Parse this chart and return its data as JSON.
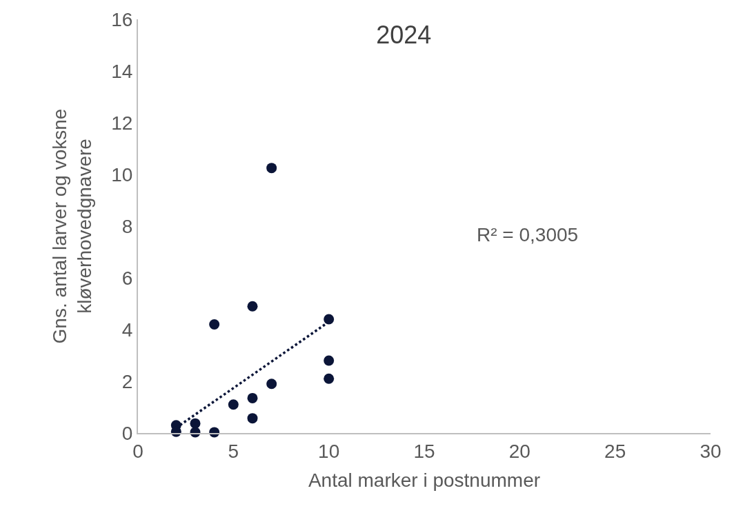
{
  "chart_data": {
    "type": "scatter",
    "title": "2024",
    "xlabel": "Antal marker i postnummer",
    "ylabel": "Gns. antal larver og voksne\nkløverhovedgnavere",
    "annotations": [
      "R² = 0,3005"
    ],
    "xlim": [
      0,
      30
    ],
    "xticks": [
      0,
      5,
      10,
      15,
      20,
      25,
      30
    ],
    "ylim": [
      0,
      16
    ],
    "yticks": [
      0,
      2,
      4,
      6,
      8,
      10,
      12,
      14,
      16
    ],
    "grid": false,
    "marker": "circle",
    "series": [
      {
        "color": "#0b1538",
        "x": [
          2,
          2,
          3,
          3,
          4,
          4,
          5,
          6,
          6,
          6,
          7,
          7,
          10,
          10,
          10
        ],
        "values": [
          0.3,
          0.05,
          0.37,
          0.03,
          0.03,
          4.2,
          1.1,
          4.9,
          1.35,
          0.57,
          10.25,
          1.9,
          4.4,
          2.8,
          2.1
        ]
      },
      {
        "type": "line",
        "color": "#0b1538",
        "line_style": "dotted",
        "marker": "none",
        "x": [
          2,
          10
        ],
        "values": [
          0.2,
          4.3
        ]
      }
    ]
  }
}
